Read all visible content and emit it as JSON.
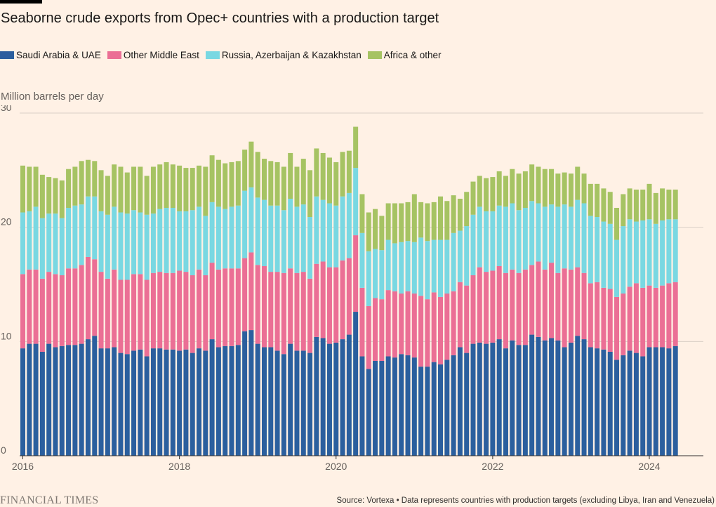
{
  "chart_data": {
    "type": "bar",
    "stacked": true,
    "title": "Seaborne crude exports from Opec+ countries with a production target",
    "ylabel": "Million barrels per day",
    "xlabel": "",
    "ylim": [
      0,
      30
    ],
    "yticks": [
      "0",
      "10",
      "20",
      "30"
    ],
    "yticks_values": [
      0,
      10,
      20,
      30
    ],
    "xticks": [
      "2016",
      "2018",
      "2020",
      "2022",
      "2024"
    ],
    "xticks_index": [
      0,
      24,
      48,
      72,
      96
    ],
    "categories": [
      "2016-01",
      "2016-02",
      "2016-03",
      "2016-04",
      "2016-05",
      "2016-06",
      "2016-07",
      "2016-08",
      "2016-09",
      "2016-10",
      "2016-11",
      "2016-12",
      "2017-01",
      "2017-02",
      "2017-03",
      "2017-04",
      "2017-05",
      "2017-06",
      "2017-07",
      "2017-08",
      "2017-09",
      "2017-10",
      "2017-11",
      "2017-12",
      "2018-01",
      "2018-02",
      "2018-03",
      "2018-04",
      "2018-05",
      "2018-06",
      "2018-07",
      "2018-08",
      "2018-09",
      "2018-10",
      "2018-11",
      "2018-12",
      "2019-01",
      "2019-02",
      "2019-03",
      "2019-04",
      "2019-05",
      "2019-06",
      "2019-07",
      "2019-08",
      "2019-09",
      "2019-10",
      "2019-11",
      "2019-12",
      "2020-01",
      "2020-02",
      "2020-03",
      "2020-04",
      "2020-05",
      "2020-06",
      "2020-07",
      "2020-08",
      "2020-09",
      "2020-10",
      "2020-11",
      "2020-12",
      "2021-01",
      "2021-02",
      "2021-03",
      "2021-04",
      "2021-05",
      "2021-06",
      "2021-07",
      "2021-08",
      "2021-09",
      "2021-10",
      "2021-11",
      "2021-12",
      "2022-01",
      "2022-02",
      "2022-03",
      "2022-04",
      "2022-05",
      "2022-06",
      "2022-07",
      "2022-08",
      "2022-09",
      "2022-10",
      "2022-11",
      "2022-12",
      "2023-01",
      "2023-02",
      "2023-03",
      "2023-04",
      "2023-05",
      "2023-06",
      "2023-07",
      "2023-08",
      "2023-09",
      "2023-10",
      "2023-11",
      "2023-12",
      "2024-01",
      "2024-02",
      "2024-03",
      "2024-04",
      "2024-05"
    ],
    "series": [
      {
        "name": "Saudi Arabia & UAE",
        "color": "#2b5f9e",
        "values": [
          9.4,
          9.8,
          9.8,
          9.1,
          9.8,
          9.5,
          9.6,
          9.7,
          9.7,
          9.8,
          10.2,
          10.5,
          9.4,
          9.4,
          9.5,
          9.0,
          8.9,
          9.2,
          9.3,
          8.7,
          9.4,
          9.4,
          9.3,
          9.3,
          9.2,
          9.3,
          9.0,
          9.4,
          9.2,
          10.2,
          9.5,
          9.6,
          9.6,
          9.7,
          10.9,
          11.0,
          9.8,
          9.5,
          9.5,
          9.2,
          8.9,
          9.8,
          9.2,
          9.2,
          9.0,
          10.4,
          10.3,
          9.8,
          9.9,
          10.2,
          10.6,
          12.6,
          8.7,
          7.6,
          8.3,
          8.3,
          8.7,
          8.6,
          8.9,
          8.8,
          8.6,
          7.8,
          7.8,
          8.2,
          8.0,
          8.4,
          8.8,
          9.5,
          9.0,
          9.8,
          9.9,
          9.8,
          9.9,
          10.2,
          9.4,
          10.1,
          9.7,
          9.7,
          10.6,
          10.4,
          10.1,
          10.3,
          10.1,
          9.5,
          9.9,
          10.5,
          10.2,
          9.5,
          9.4,
          9.3,
          9.1,
          8.4,
          8.8,
          9.2,
          9.0,
          8.7,
          9.5,
          9.5,
          9.5,
          9.4,
          9.6
        ]
      },
      {
        "name": "Other Middle East",
        "color": "#eb6f95",
        "values": [
          6.5,
          6.5,
          6.5,
          6.4,
          6.3,
          6.4,
          6.2,
          6.7,
          6.7,
          6.9,
          7.2,
          6.7,
          6.7,
          6.1,
          6.8,
          6.4,
          6.5,
          6.7,
          6.6,
          6.7,
          6.6,
          6.7,
          6.7,
          6.7,
          7.0,
          6.8,
          6.8,
          6.9,
          6.6,
          6.7,
          6.8,
          6.8,
          6.8,
          6.7,
          6.4,
          6.8,
          6.9,
          7.1,
          6.6,
          6.9,
          7.1,
          6.6,
          6.8,
          6.9,
          6.5,
          6.4,
          6.7,
          6.7,
          6.6,
          6.9,
          6.7,
          6.7,
          6.0,
          5.5,
          5.5,
          5.4,
          5.8,
          5.8,
          5.3,
          5.6,
          5.6,
          6.2,
          5.9,
          6.1,
          5.9,
          5.8,
          5.6,
          5.7,
          5.9,
          6.0,
          6.6,
          6.3,
          6.3,
          6.4,
          6.6,
          6.2,
          6.3,
          6.6,
          6.1,
          6.6,
          6.2,
          6.6,
          5.9,
          6.9,
          6.4,
          6.0,
          5.8,
          5.6,
          5.8,
          5.4,
          5.5,
          5.5,
          5.4,
          5.6,
          6.1,
          6.0,
          5.4,
          5.2,
          5.4,
          5.7,
          5.6
        ]
      },
      {
        "name": "Russia, Azerbaijan & Kazakhstan",
        "color": "#79d8e2",
        "values": [
          5.4,
          5.1,
          5.5,
          5.3,
          5.1,
          5.3,
          5.0,
          5.3,
          5.5,
          5.3,
          5.3,
          5.5,
          5.3,
          5.6,
          5.5,
          5.9,
          5.8,
          5.6,
          5.4,
          5.7,
          5.2,
          5.5,
          5.7,
          5.7,
          5.2,
          5.3,
          5.7,
          5.5,
          5.2,
          5.3,
          5.5,
          5.2,
          5.4,
          5.5,
          5.9,
          5.7,
          5.9,
          5.8,
          5.8,
          5.8,
          5.5,
          6.1,
          5.8,
          5.9,
          5.4,
          5.9,
          5.4,
          5.6,
          5.4,
          5.6,
          5.7,
          5.9,
          4.8,
          4.8,
          4.3,
          4.3,
          4.4,
          4.2,
          4.5,
          4.4,
          4.5,
          5.1,
          5.1,
          4.6,
          5.0,
          4.7,
          5.1,
          4.5,
          5.2,
          5.3,
          5.3,
          5.3,
          5.2,
          5.3,
          5.8,
          5.8,
          5.5,
          5.4,
          5.6,
          5.1,
          5.5,
          5.1,
          5.8,
          5.6,
          5.5,
          5.9,
          6.1,
          5.9,
          5.7,
          5.8,
          5.7,
          5.0,
          5.9,
          5.9,
          5.4,
          5.9,
          5.8,
          5.6,
          5.7,
          5.6,
          5.5
        ]
      },
      {
        "name": "Africa & other",
        "color": "#a6c363",
        "values": [
          4.1,
          3.9,
          3.5,
          3.8,
          3.2,
          3.1,
          3.3,
          3.4,
          3.4,
          3.8,
          3.2,
          3.1,
          3.6,
          3.4,
          3.7,
          4.0,
          3.6,
          3.8,
          4.0,
          3.4,
          4.1,
          3.9,
          4.0,
          3.8,
          4.0,
          3.8,
          3.7,
          3.6,
          4.3,
          4.1,
          4.1,
          4.0,
          3.9,
          3.9,
          3.6,
          4.0,
          4.0,
          3.6,
          3.9,
          3.8,
          3.8,
          4.0,
          3.5,
          4.0,
          4.1,
          4.2,
          4.1,
          4.0,
          3.8,
          3.9,
          3.7,
          3.6,
          3.4,
          3.4,
          3.5,
          3.0,
          3.2,
          3.5,
          3.4,
          3.4,
          4.2,
          3.1,
          3.3,
          3.3,
          3.8,
          3.4,
          3.3,
          2.8,
          3.0,
          2.9,
          2.7,
          2.9,
          3.0,
          3.0,
          2.7,
          3.0,
          3.2,
          3.2,
          3.2,
          3.2,
          3.3,
          3.1,
          2.9,
          2.8,
          2.9,
          2.9,
          2.6,
          2.8,
          2.9,
          2.9,
          2.8,
          2.8,
          2.8,
          2.7,
          2.8,
          2.7,
          3.1,
          2.7,
          2.8,
          2.6,
          2.6
        ]
      }
    ],
    "legend_position": "top-left",
    "grid": true
  },
  "footer": {
    "logo_text": "FINANCIAL TIMES",
    "source": "Source: Vortexa • Data represents countries with production targets (excluding Libya, Iran and Venezuela)"
  }
}
